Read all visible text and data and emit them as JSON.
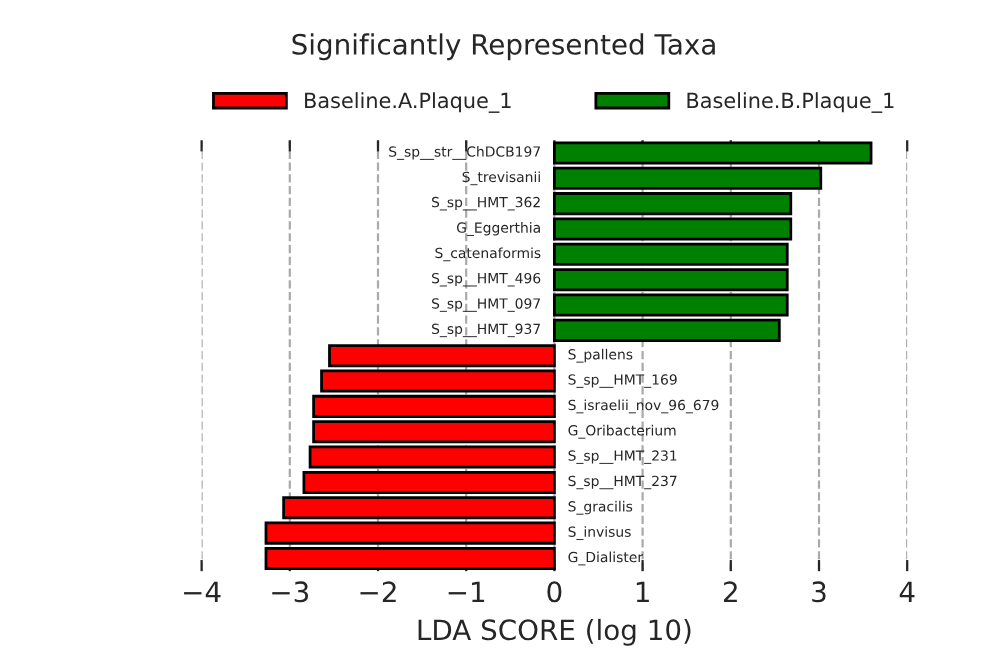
{
  "chart_data": {
    "type": "bar",
    "orientation": "horizontal",
    "title": "Significantly Represented Taxa",
    "xlabel": "LDA SCORE (log 10)",
    "categories": [
      "S_sp__str__ChDCB197",
      "S_trevisanii",
      "S_sp__HMT_362",
      "G_Eggerthia",
      "S_catenaformis",
      "S_sp__HMT_496",
      "S_sp__HMT_097",
      "S_sp__HMT_937",
      "S_pallens",
      "S_sp__HMT_169",
      "S_israelii_nov_96_679",
      "G_Oribacterium",
      "S_sp__HMT_231",
      "S_sp__HMT_237",
      "S_gracilis",
      "S_invisus",
      "G_Dialister"
    ],
    "series": [
      {
        "name": "Baseline.A.Plaque_1",
        "color": "#ff0000",
        "values": [
          null,
          null,
          null,
          null,
          null,
          null,
          null,
          null,
          -2.55,
          -2.64,
          -2.73,
          -2.73,
          -2.77,
          -2.84,
          -3.07,
          -3.27,
          -3.27
        ]
      },
      {
        "name": "Baseline.B.Plaque_1",
        "color": "#008000",
        "values": [
          3.59,
          3.02,
          2.68,
          2.68,
          2.64,
          2.64,
          2.64,
          2.55,
          null,
          null,
          null,
          null,
          null,
          null,
          null,
          null,
          null
        ]
      }
    ],
    "xlim": [
      -4,
      4
    ],
    "xticks": [
      {
        "value": -4,
        "label": "−4"
      },
      {
        "value": -3,
        "label": "−3"
      },
      {
        "value": -2,
        "label": "−2"
      },
      {
        "value": -1,
        "label": "−1"
      },
      0,
      1,
      2,
      3,
      4
    ],
    "grid": "x",
    "legend": "top"
  }
}
